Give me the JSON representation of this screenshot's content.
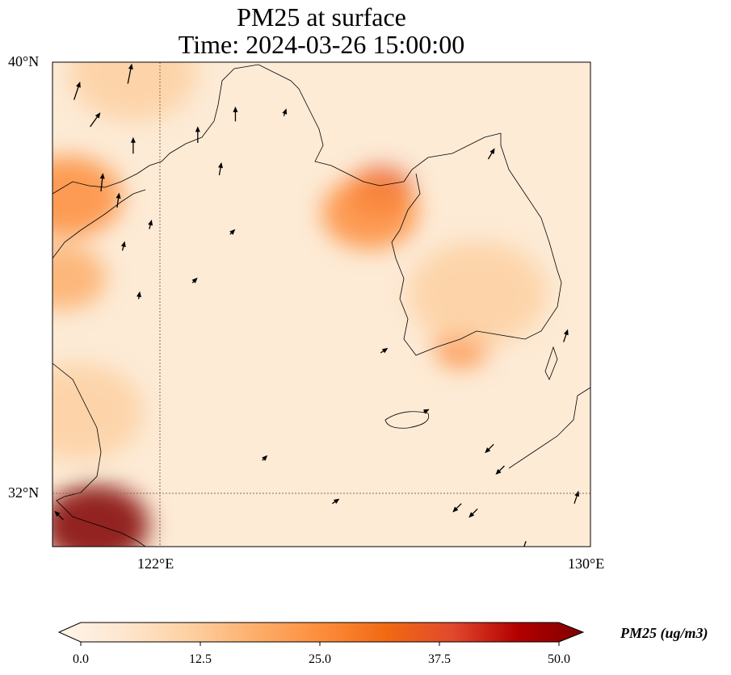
{
  "title_line1": "PM25 at surface",
  "title_line2": "Time: 2024-03-26 15:00:00",
  "map": {
    "extent_lon": [
      120,
      130
    ],
    "extent_lat": [
      31,
      40
    ],
    "lon_ticks": [
      {
        "value": 122,
        "label": "122°E"
      },
      {
        "value": 130,
        "label": "130°E"
      }
    ],
    "lat_ticks": [
      {
        "value": 40,
        "label": "40°N"
      },
      {
        "value": 32,
        "label": "32°N"
      }
    ],
    "hotspots": [
      {
        "lon": 120.8,
        "lat": 31.4,
        "value": 50,
        "r": 1.0
      },
      {
        "lon": 120.3,
        "lat": 37.5,
        "value": 22,
        "r": 1.0
      },
      {
        "lon": 120.2,
        "lat": 36.0,
        "value": 20,
        "r": 0.8
      },
      {
        "lon": 126.1,
        "lat": 37.6,
        "value": 38,
        "r": 0.6
      },
      {
        "lon": 125.9,
        "lat": 37.2,
        "value": 22,
        "r": 0.9
      },
      {
        "lon": 127.6,
        "lat": 34.7,
        "value": 28,
        "r": 0.5
      },
      {
        "lon": 127.9,
        "lat": 35.7,
        "value": 15,
        "r": 1.3
      },
      {
        "lon": 121.5,
        "lat": 39.8,
        "value": 12,
        "r": 1.2
      },
      {
        "lon": 120.5,
        "lat": 33.5,
        "value": 12,
        "r": 1.2
      }
    ],
    "winds": [
      [
        120.4,
        39.3,
        0.3,
        0.9
      ],
      [
        120.7,
        38.8,
        0.5,
        0.7
      ],
      [
        121.4,
        39.6,
        0.2,
        1
      ],
      [
        121.5,
        38.3,
        0.0,
        0.8
      ],
      [
        120.9,
        37.6,
        0.1,
        0.9
      ],
      [
        121.2,
        37.3,
        0.1,
        0.7
      ],
      [
        122.7,
        38.5,
        0,
        0.8
      ],
      [
        123.1,
        37.9,
        0.1,
        0.6
      ],
      [
        123.4,
        38.9,
        0,
        0.7
      ],
      [
        121.8,
        36.9,
        0.1,
        0.4
      ],
      [
        121.3,
        36.5,
        0.1,
        0.4
      ],
      [
        121.6,
        35.6,
        0.05,
        0.3
      ],
      [
        122.6,
        35.9,
        0.2,
        0.2
      ],
      [
        123.3,
        36.8,
        0.2,
        0.2
      ],
      [
        124.3,
        39.0,
        0.1,
        0.3
      ],
      [
        128.1,
        38.2,
        0.3,
        0.5
      ],
      [
        129.5,
        34.8,
        0.2,
        0.6
      ],
      [
        128.2,
        32.9,
        -0.4,
        -0.4
      ],
      [
        128.4,
        32.5,
        -0.4,
        -0.4
      ],
      [
        127.6,
        31.8,
        -0.4,
        -0.4
      ],
      [
        127.9,
        31.7,
        -0.4,
        -0.4
      ],
      [
        129.7,
        31.8,
        0.2,
        0.6
      ],
      [
        128.8,
        31.1,
        -0.2,
        -0.6
      ],
      [
        120.2,
        31.5,
        -0.4,
        0.4
      ],
      [
        123.9,
        32.6,
        0.2,
        0.2
      ],
      [
        125.2,
        31.8,
        0.3,
        0.2
      ],
      [
        126.9,
        33.5,
        0.2,
        0.1
      ],
      [
        126.1,
        34.6,
        0.3,
        0.2
      ]
    ]
  },
  "colorbar": {
    "label": "PM25 (ug/m3)",
    "label_main": "PM25 (ug/m",
    "label_sup": "3",
    "label_end": ")",
    "min": 0,
    "max": 50,
    "ticks": [
      "0.0",
      "12.5",
      "25.0",
      "37.5",
      "50.0"
    ],
    "colors": [
      "#fff5eb",
      "#fee6ce",
      "#fdd0a2",
      "#fdae6b",
      "#fd8d3c",
      "#f16913",
      "#e2492d",
      "#b30000",
      "#7f0000"
    ]
  }
}
